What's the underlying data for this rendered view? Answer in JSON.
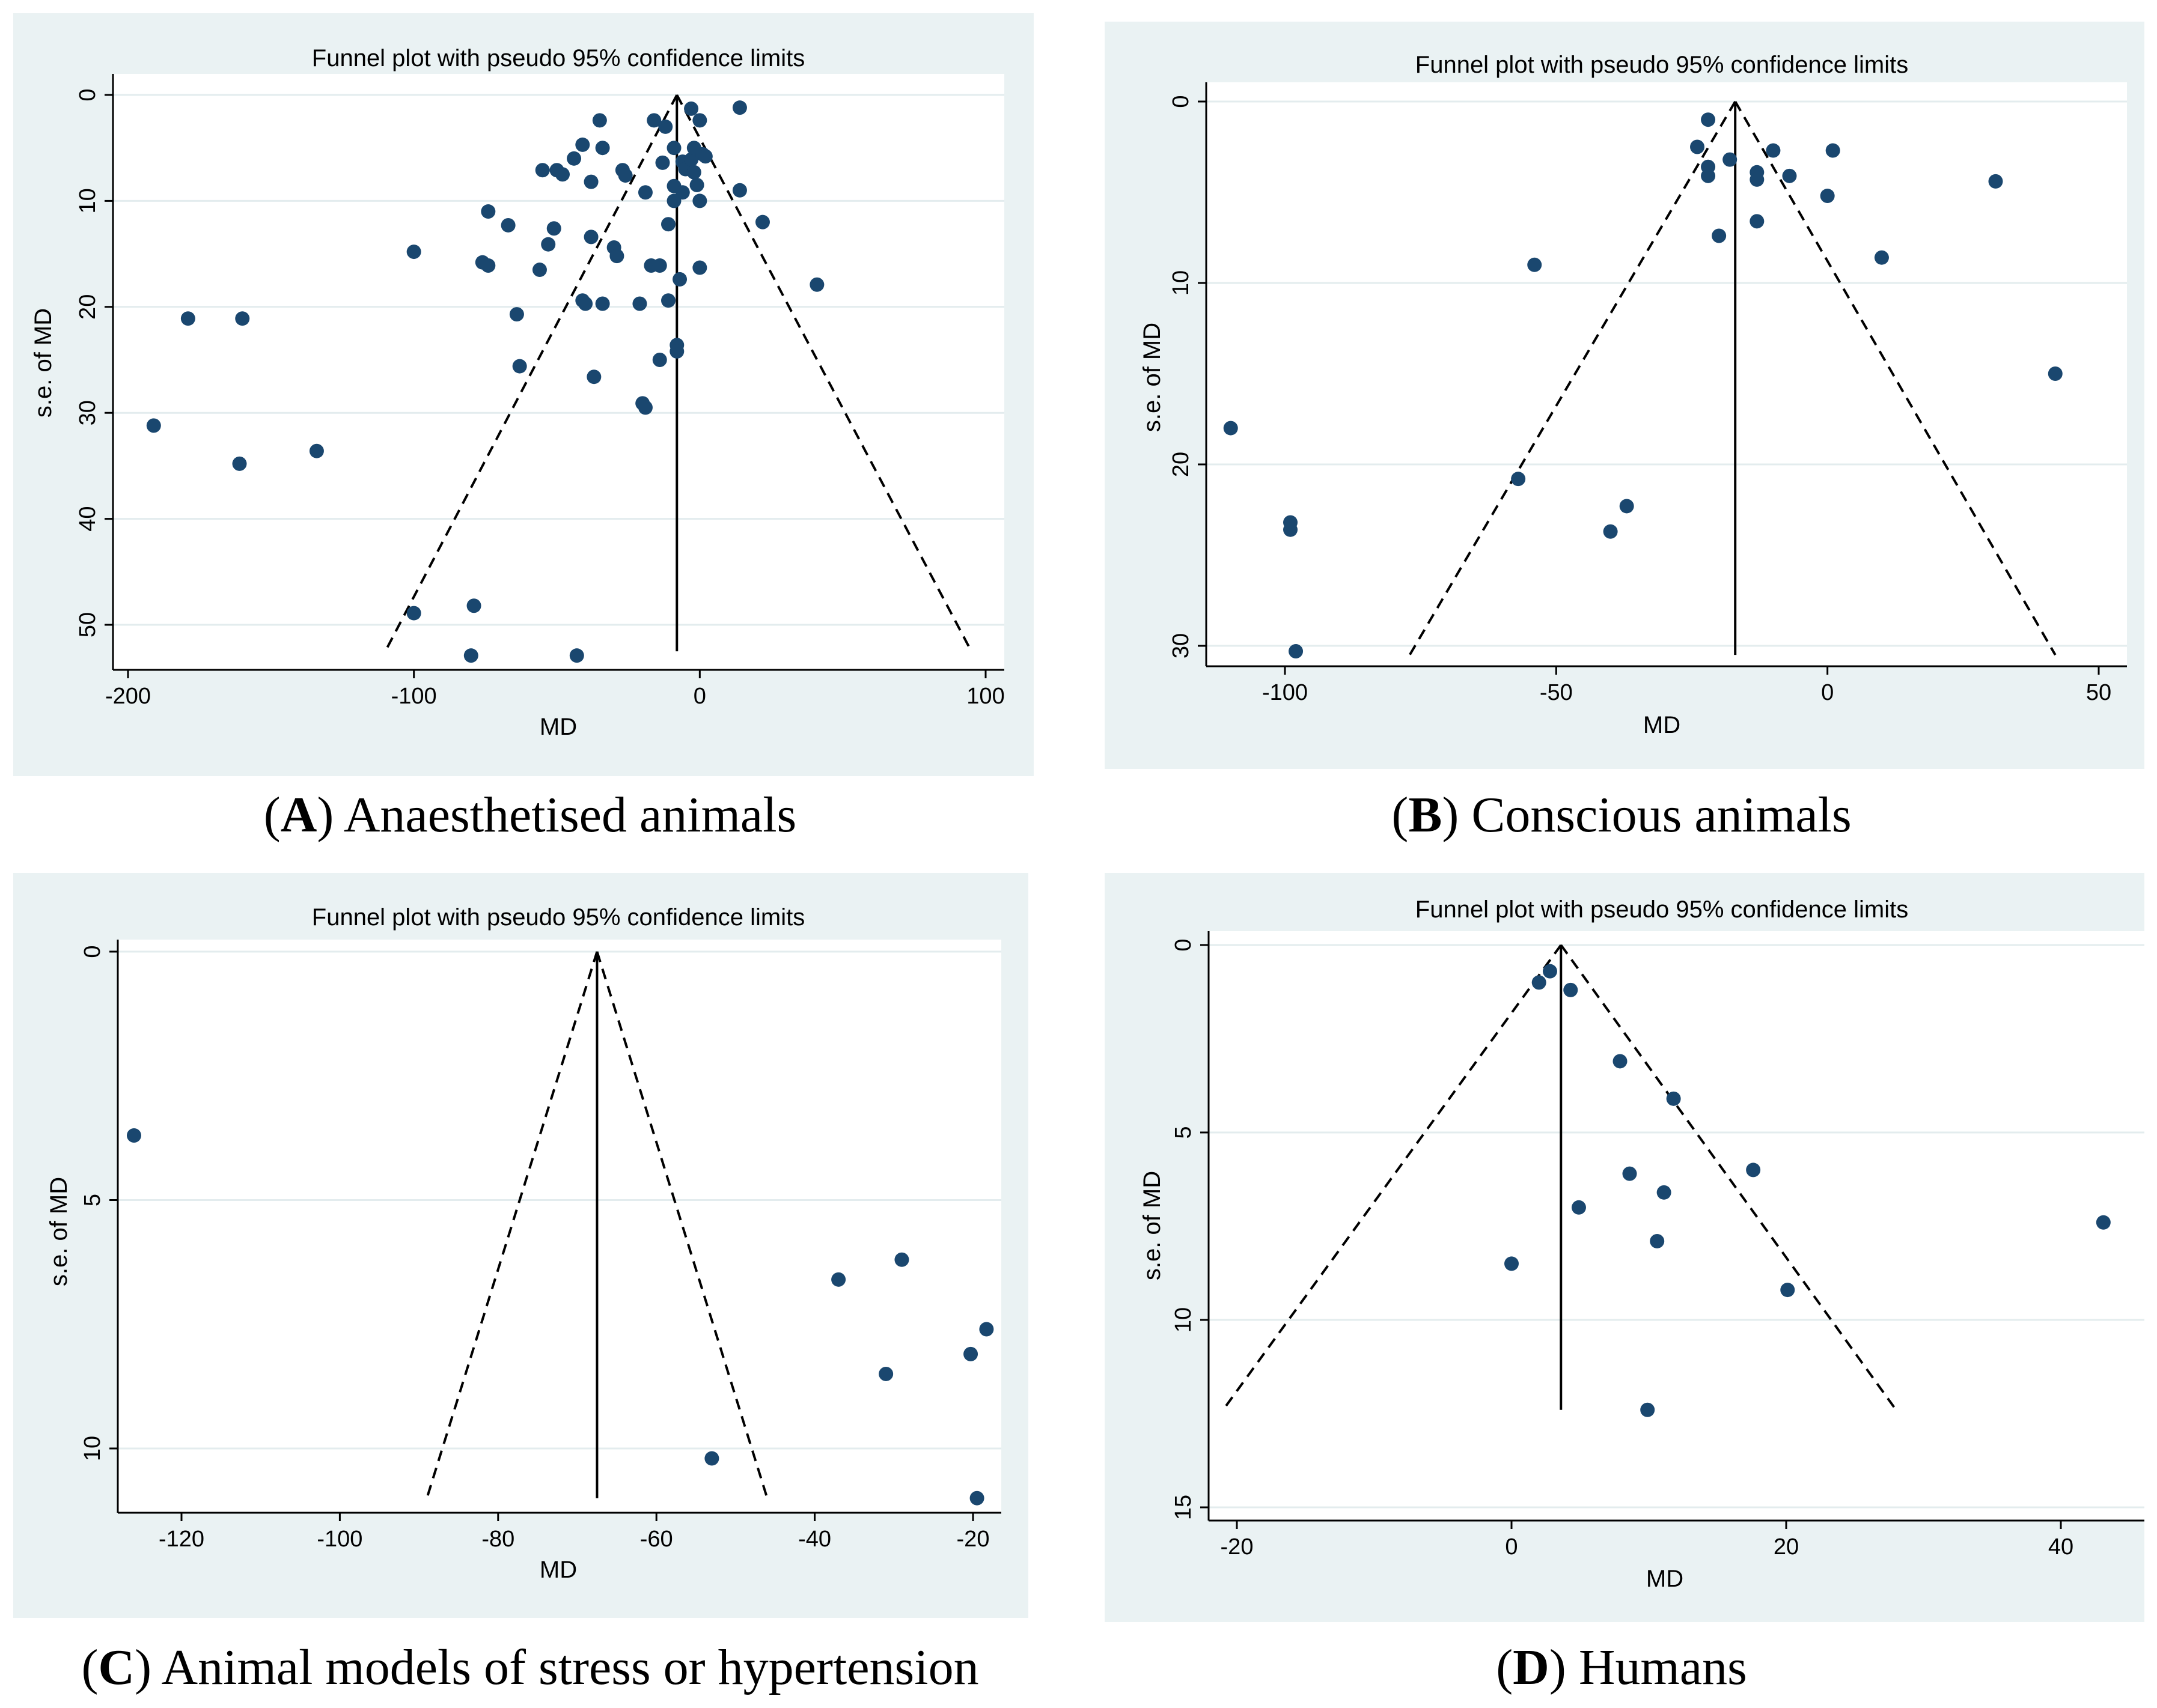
{
  "colors": {
    "panel_bg": "#eaf2f3",
    "plot_bg": "#ffffff",
    "grid": "#e3ecee",
    "marker": "#1a476f",
    "line": "#000000"
  },
  "chart_data": [
    {
      "id": "A",
      "type": "scatter",
      "title": "Funnel plot with pseudo 95% confidence limits",
      "xlabel": "MD",
      "ylabel": "s.e. of MD",
      "caption_letter": "A",
      "caption_text": " Anaesthetised animals",
      "xlim": [
        -201,
        103
      ],
      "ylim": [
        0,
        54
      ],
      "y_reversed": true,
      "x_ticks": [
        -200,
        -100,
        0,
        100
      ],
      "x_tick_labels": [
        "-200",
        "-100",
        "0",
        "100"
      ],
      "y_ticks": [
        0,
        10,
        20,
        30,
        40,
        50
      ],
      "y_tick_labels": [
        "0",
        "10",
        "20",
        "30",
        "40",
        "50"
      ],
      "pooled_estimate": -8,
      "funnel": {
        "apex": [
          -8,
          0
        ],
        "left_end": [
          -110,
          52.5
        ],
        "right_end": [
          95,
          52.5
        ]
      },
      "points": [
        [
          -191,
          31.2
        ],
        [
          -179,
          21.1
        ],
        [
          -161,
          34.8
        ],
        [
          -160,
          21.1
        ],
        [
          -134,
          33.6
        ],
        [
          -100,
          48.9
        ],
        [
          -100,
          14.8
        ],
        [
          -80,
          52.9
        ],
        [
          -79,
          48.2
        ],
        [
          -76,
          15.8
        ],
        [
          -74,
          16.1
        ],
        [
          -74,
          11.0
        ],
        [
          -67,
          12.3
        ],
        [
          -64,
          20.7
        ],
        [
          -63,
          25.6
        ],
        [
          -56,
          16.5
        ],
        [
          -55,
          7.1
        ],
        [
          -53,
          14.1
        ],
        [
          -51,
          12.6
        ],
        [
          -50,
          7.1
        ],
        [
          -48,
          7.5
        ],
        [
          -44,
          6.0
        ],
        [
          -43,
          52.9
        ],
        [
          -41,
          4.7
        ],
        [
          -41,
          19.4
        ],
        [
          -40,
          19.7
        ],
        [
          -38,
          8.2
        ],
        [
          -38,
          13.4
        ],
        [
          -37,
          26.6
        ],
        [
          -35,
          2.4
        ],
        [
          -34,
          5.0
        ],
        [
          -34,
          19.7
        ],
        [
          -30,
          14.4
        ],
        [
          -29,
          15.2
        ],
        [
          -27,
          7.1
        ],
        [
          -26,
          7.6
        ],
        [
          -21,
          19.7
        ],
        [
          -20,
          29.1
        ],
        [
          -19,
          29.5
        ],
        [
          -19,
          9.2
        ],
        [
          -17,
          16.1
        ],
        [
          -16,
          2.4
        ],
        [
          -14,
          16.1
        ],
        [
          -14,
          25.0
        ],
        [
          -13,
          6.4
        ],
        [
          -12,
          3.0
        ],
        [
          -11,
          19.4
        ],
        [
          -11,
          12.2
        ],
        [
          -9,
          5.0
        ],
        [
          -9,
          8.6
        ],
        [
          -9,
          10.0
        ],
        [
          -8,
          23.6
        ],
        [
          -8,
          24.2
        ],
        [
          -7,
          17.4
        ],
        [
          -6,
          6.3
        ],
        [
          -6,
          9.2
        ],
        [
          -5,
          7.0
        ],
        [
          -3,
          1.3
        ],
        [
          -3,
          6.1
        ],
        [
          -2,
          5.0
        ],
        [
          -2,
          7.3
        ],
        [
          -1,
          8.5
        ],
        [
          0,
          2.4
        ],
        [
          0,
          10.0
        ],
        [
          0,
          16.3
        ],
        [
          1,
          5.6
        ],
        [
          2,
          5.8
        ],
        [
          14,
          1.2
        ],
        [
          14,
          9.0
        ],
        [
          22,
          12.0
        ],
        [
          41,
          17.9
        ]
      ]
    },
    {
      "id": "B",
      "type": "scatter",
      "title": "Funnel plot with pseudo 95% confidence limits",
      "xlabel": "MD",
      "ylabel": "s.e. of MD",
      "caption_letter": "B",
      "caption_text": " Conscious animals",
      "xlim": [
        -113,
        52
      ],
      "ylim": [
        0,
        31
      ],
      "y_reversed": true,
      "x_ticks": [
        -100,
        -50,
        0,
        50
      ],
      "x_tick_labels": [
        "-100",
        "-50",
        "0",
        "50"
      ],
      "y_ticks": [
        0,
        10,
        20,
        30
      ],
      "y_tick_labels": [
        "0",
        "10",
        "20",
        "30"
      ],
      "pooled_estimate": -17,
      "funnel": {
        "apex": [
          -17,
          0
        ],
        "left_end": [
          -77,
          30.5
        ],
        "right_end": [
          42,
          30.5
        ]
      },
      "points": [
        [
          -110,
          18.0
        ],
        [
          -99,
          23.2
        ],
        [
          -99,
          23.6
        ],
        [
          -98,
          30.3
        ],
        [
          -54,
          9.0
        ],
        [
          -57,
          20.8
        ],
        [
          -40,
          23.7
        ],
        [
          -37,
          22.3
        ],
        [
          -24,
          2.5
        ],
        [
          -22,
          1.0
        ],
        [
          -22,
          3.6
        ],
        [
          -22,
          4.1
        ],
        [
          -20,
          7.4
        ],
        [
          -18,
          3.2
        ],
        [
          -13,
          3.9
        ],
        [
          -13,
          4.3
        ],
        [
          -13,
          6.6
        ],
        [
          -10,
          2.7
        ],
        [
          -7,
          4.1
        ],
        [
          0,
          5.2
        ],
        [
          1,
          2.7
        ],
        [
          10,
          8.6
        ],
        [
          31,
          4.4
        ],
        [
          42,
          15.0
        ]
      ]
    },
    {
      "id": "C",
      "type": "scatter",
      "title": "Funnel plot with pseudo 95% confidence limits",
      "xlabel": "MD",
      "ylabel": "s.e. of MD",
      "caption_letter": "C",
      "caption_text": " Animal models of stress or hypertension",
      "xlim": [
        -127,
        -17.5
      ],
      "ylim": [
        0,
        11.3
      ],
      "y_reversed": true,
      "x_ticks": [
        -120,
        -100,
        -80,
        -60,
        -40,
        -20
      ],
      "x_tick_labels": [
        "-120",
        "-100",
        "-80",
        "-60",
        "-40",
        "-20"
      ],
      "y_ticks": [
        0,
        5,
        10
      ],
      "y_tick_labels": [
        "0",
        "5",
        "10"
      ],
      "pooled_estimate": -67.5,
      "funnel": {
        "apex": [
          -67.5,
          0
        ],
        "left_end": [
          -89,
          11
        ],
        "right_end": [
          -46,
          11
        ]
      },
      "points": [
        [
          -126,
          3.7
        ],
        [
          -53,
          10.2
        ],
        [
          -37,
          6.6
        ],
        [
          -31,
          8.5
        ],
        [
          -29,
          6.2
        ],
        [
          -20.3,
          8.1
        ],
        [
          -19.5,
          11.0
        ],
        [
          -18.3,
          7.6
        ]
      ]
    },
    {
      "id": "D",
      "type": "scatter",
      "title": "Funnel plot with pseudo 95% confidence limits",
      "xlabel": "MD",
      "ylabel": "s.e. of MD",
      "caption_letter": "D",
      "caption_text": " Humans",
      "xlim": [
        -22,
        44
      ],
      "ylim": [
        0,
        15.3
      ],
      "y_reversed": true,
      "x_ticks": [
        -20,
        0,
        20,
        40
      ],
      "x_tick_labels": [
        "-20",
        "0",
        "20",
        "40"
      ],
      "y_ticks": [
        0,
        5,
        10,
        15
      ],
      "y_tick_labels": [
        "0",
        "5",
        "10",
        "15"
      ],
      "pooled_estimate": 3.6,
      "funnel": {
        "apex": [
          3.6,
          0
        ],
        "left_end": [
          -21,
          12.4
        ],
        "right_end": [
          28,
          12.4
        ]
      },
      "points": [
        [
          0,
          8.5
        ],
        [
          2,
          1.0
        ],
        [
          2.8,
          0.7
        ],
        [
          4.3,
          1.2
        ],
        [
          4.9,
          7.0
        ],
        [
          7.9,
          3.1
        ],
        [
          8.6,
          6.1
        ],
        [
          9.9,
          12.4
        ],
        [
          10.6,
          7.9
        ],
        [
          11.1,
          6.6
        ],
        [
          11.8,
          4.1
        ],
        [
          17.6,
          6.0
        ],
        [
          20.1,
          9.2
        ],
        [
          43.1,
          7.4
        ]
      ]
    }
  ]
}
